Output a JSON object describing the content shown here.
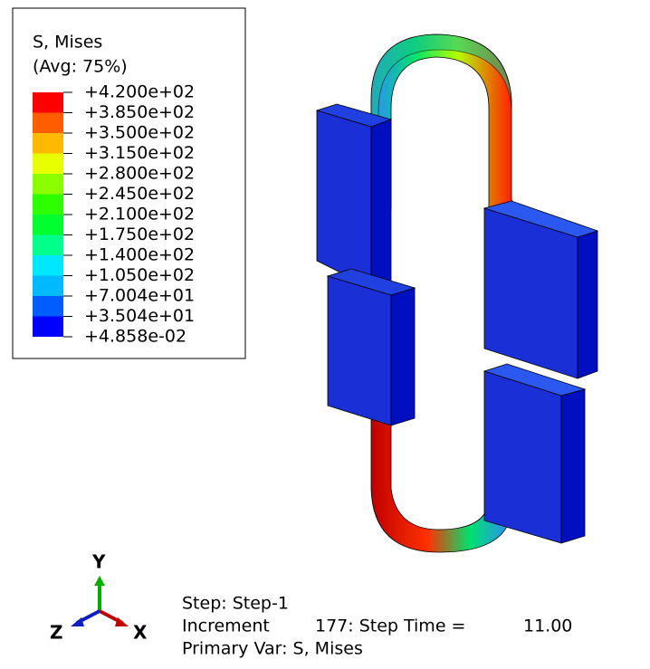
{
  "legend": {
    "title": "S, Mises",
    "subtitle": "(Avg: 75%)",
    "labels": [
      "+4.200e+02",
      "+3.850e+02",
      "+3.500e+02",
      "+3.150e+02",
      "+2.800e+02",
      "+2.450e+02",
      "+2.100e+02",
      "+1.750e+02",
      "+1.400e+02",
      "+1.050e+02",
      "+7.004e+01",
      "+3.504e+01",
      "+4.858e-02"
    ],
    "colors": [
      "#ff0000",
      "#ff5d00",
      "#ffb900",
      "#e8ff00",
      "#8bff00",
      "#2eff00",
      "#00ff2e",
      "#00ff8b",
      "#00e8ff",
      "#00b9ff",
      "#005dff",
      "#0000ff"
    ]
  },
  "triad": {
    "y": "Y",
    "x": "X",
    "z": "Z"
  },
  "status": {
    "step": "Step: Step-1",
    "increment": "Increment",
    "step_time": "177: Step Time =",
    "time_value": "11.00",
    "primary_var": "Primary Var: S, Mises"
  }
}
